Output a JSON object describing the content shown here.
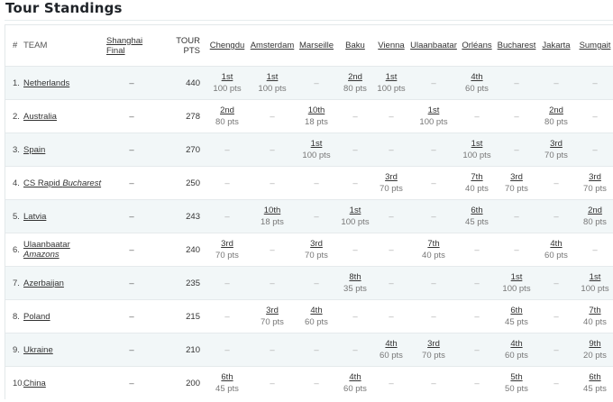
{
  "title": "Tour Standings",
  "headers": {
    "num": "#",
    "team": "TEAM",
    "final_line1": "Shanghai",
    "final_line2": "Final",
    "tour_line1": "TOUR",
    "tour_line2": "PTS"
  },
  "events": [
    "Chengdu",
    "Amsterdam",
    "Marseille",
    "Baku",
    "Vienna",
    "Ulaanbaatar",
    "Orléans",
    "Bucharest",
    "Jakarta",
    "Sumgait"
  ],
  "dash": "–",
  "rows": [
    {
      "rank": "1.",
      "team": "Netherlands",
      "team_italic": "",
      "final": "–",
      "tour": "440",
      "results": [
        [
          "1st",
          "100 pts"
        ],
        [
          "1st",
          "100 pts"
        ],
        null,
        [
          "2nd",
          "80 pts"
        ],
        [
          "1st",
          "100 pts"
        ],
        null,
        [
          "4th",
          "60 pts"
        ],
        null,
        null,
        null
      ]
    },
    {
      "rank": "2.",
      "team": "Australia",
      "team_italic": "",
      "final": "–",
      "tour": "278",
      "results": [
        [
          "2nd",
          "80 pts"
        ],
        null,
        [
          "10th",
          "18 pts"
        ],
        null,
        null,
        [
          "1st",
          "100 pts"
        ],
        null,
        null,
        [
          "2nd",
          "80 pts"
        ],
        null
      ]
    },
    {
      "rank": "3.",
      "team": "Spain",
      "team_italic": "",
      "final": "–",
      "tour": "270",
      "results": [
        null,
        null,
        [
          "1st",
          "100 pts"
        ],
        null,
        null,
        null,
        [
          "1st",
          "100 pts"
        ],
        null,
        [
          "3rd",
          "70 pts"
        ],
        null
      ]
    },
    {
      "rank": "4.",
      "team": "CS Rapid ",
      "team_italic": "Bucharest",
      "final": "–",
      "tour": "250",
      "results": [
        null,
        null,
        null,
        null,
        [
          "3rd",
          "70 pts"
        ],
        null,
        [
          "7th",
          "40 pts"
        ],
        [
          "3rd",
          "70 pts"
        ],
        null,
        [
          "3rd",
          "70 pts"
        ]
      ]
    },
    {
      "rank": "5.",
      "team": "Latvia",
      "team_italic": "",
      "final": "–",
      "tour": "243",
      "results": [
        null,
        [
          "10th",
          "18 pts"
        ],
        null,
        [
          "1st",
          "100 pts"
        ],
        null,
        null,
        [
          "6th",
          "45 pts"
        ],
        null,
        null,
        [
          "2nd",
          "80 pts"
        ]
      ]
    },
    {
      "rank": "6.",
      "team": "Ulaanbaatar",
      "team_italic": "Amazons",
      "final": "–",
      "tour": "240",
      "results": [
        [
          "3rd",
          "70 pts"
        ],
        null,
        [
          "3rd",
          "70 pts"
        ],
        null,
        null,
        [
          "7th",
          "40 pts"
        ],
        null,
        null,
        [
          "4th",
          "60 pts"
        ],
        null
      ]
    },
    {
      "rank": "7.",
      "team": "Azerbaijan",
      "team_italic": "",
      "final": "–",
      "tour": "235",
      "results": [
        null,
        null,
        null,
        [
          "8th",
          "35 pts"
        ],
        null,
        null,
        null,
        [
          "1st",
          "100 pts"
        ],
        null,
        [
          "1st",
          "100 pts"
        ]
      ]
    },
    {
      "rank": "8.",
      "team": "Poland",
      "team_italic": "",
      "final": "–",
      "tour": "215",
      "results": [
        null,
        [
          "3rd",
          "70 pts"
        ],
        [
          "4th",
          "60 pts"
        ],
        null,
        null,
        null,
        null,
        [
          "6th",
          "45 pts"
        ],
        null,
        [
          "7th",
          "40 pts"
        ]
      ]
    },
    {
      "rank": "9.",
      "team": "Ukraine",
      "team_italic": "",
      "final": "–",
      "tour": "210",
      "results": [
        null,
        null,
        null,
        null,
        [
          "4th",
          "60 pts"
        ],
        [
          "3rd",
          "70 pts"
        ],
        null,
        [
          "4th",
          "60 pts"
        ],
        null,
        [
          "9th",
          "20 pts"
        ]
      ]
    },
    {
      "rank": "10.",
      "team": "China",
      "team_italic": "",
      "final": "–",
      "tour": "200",
      "results": [
        [
          "6th",
          "45 pts"
        ],
        null,
        null,
        [
          "4th",
          "60 pts"
        ],
        null,
        null,
        null,
        [
          "5th",
          "50 pts"
        ],
        null,
        [
          "6th",
          "45 pts"
        ]
      ]
    }
  ]
}
